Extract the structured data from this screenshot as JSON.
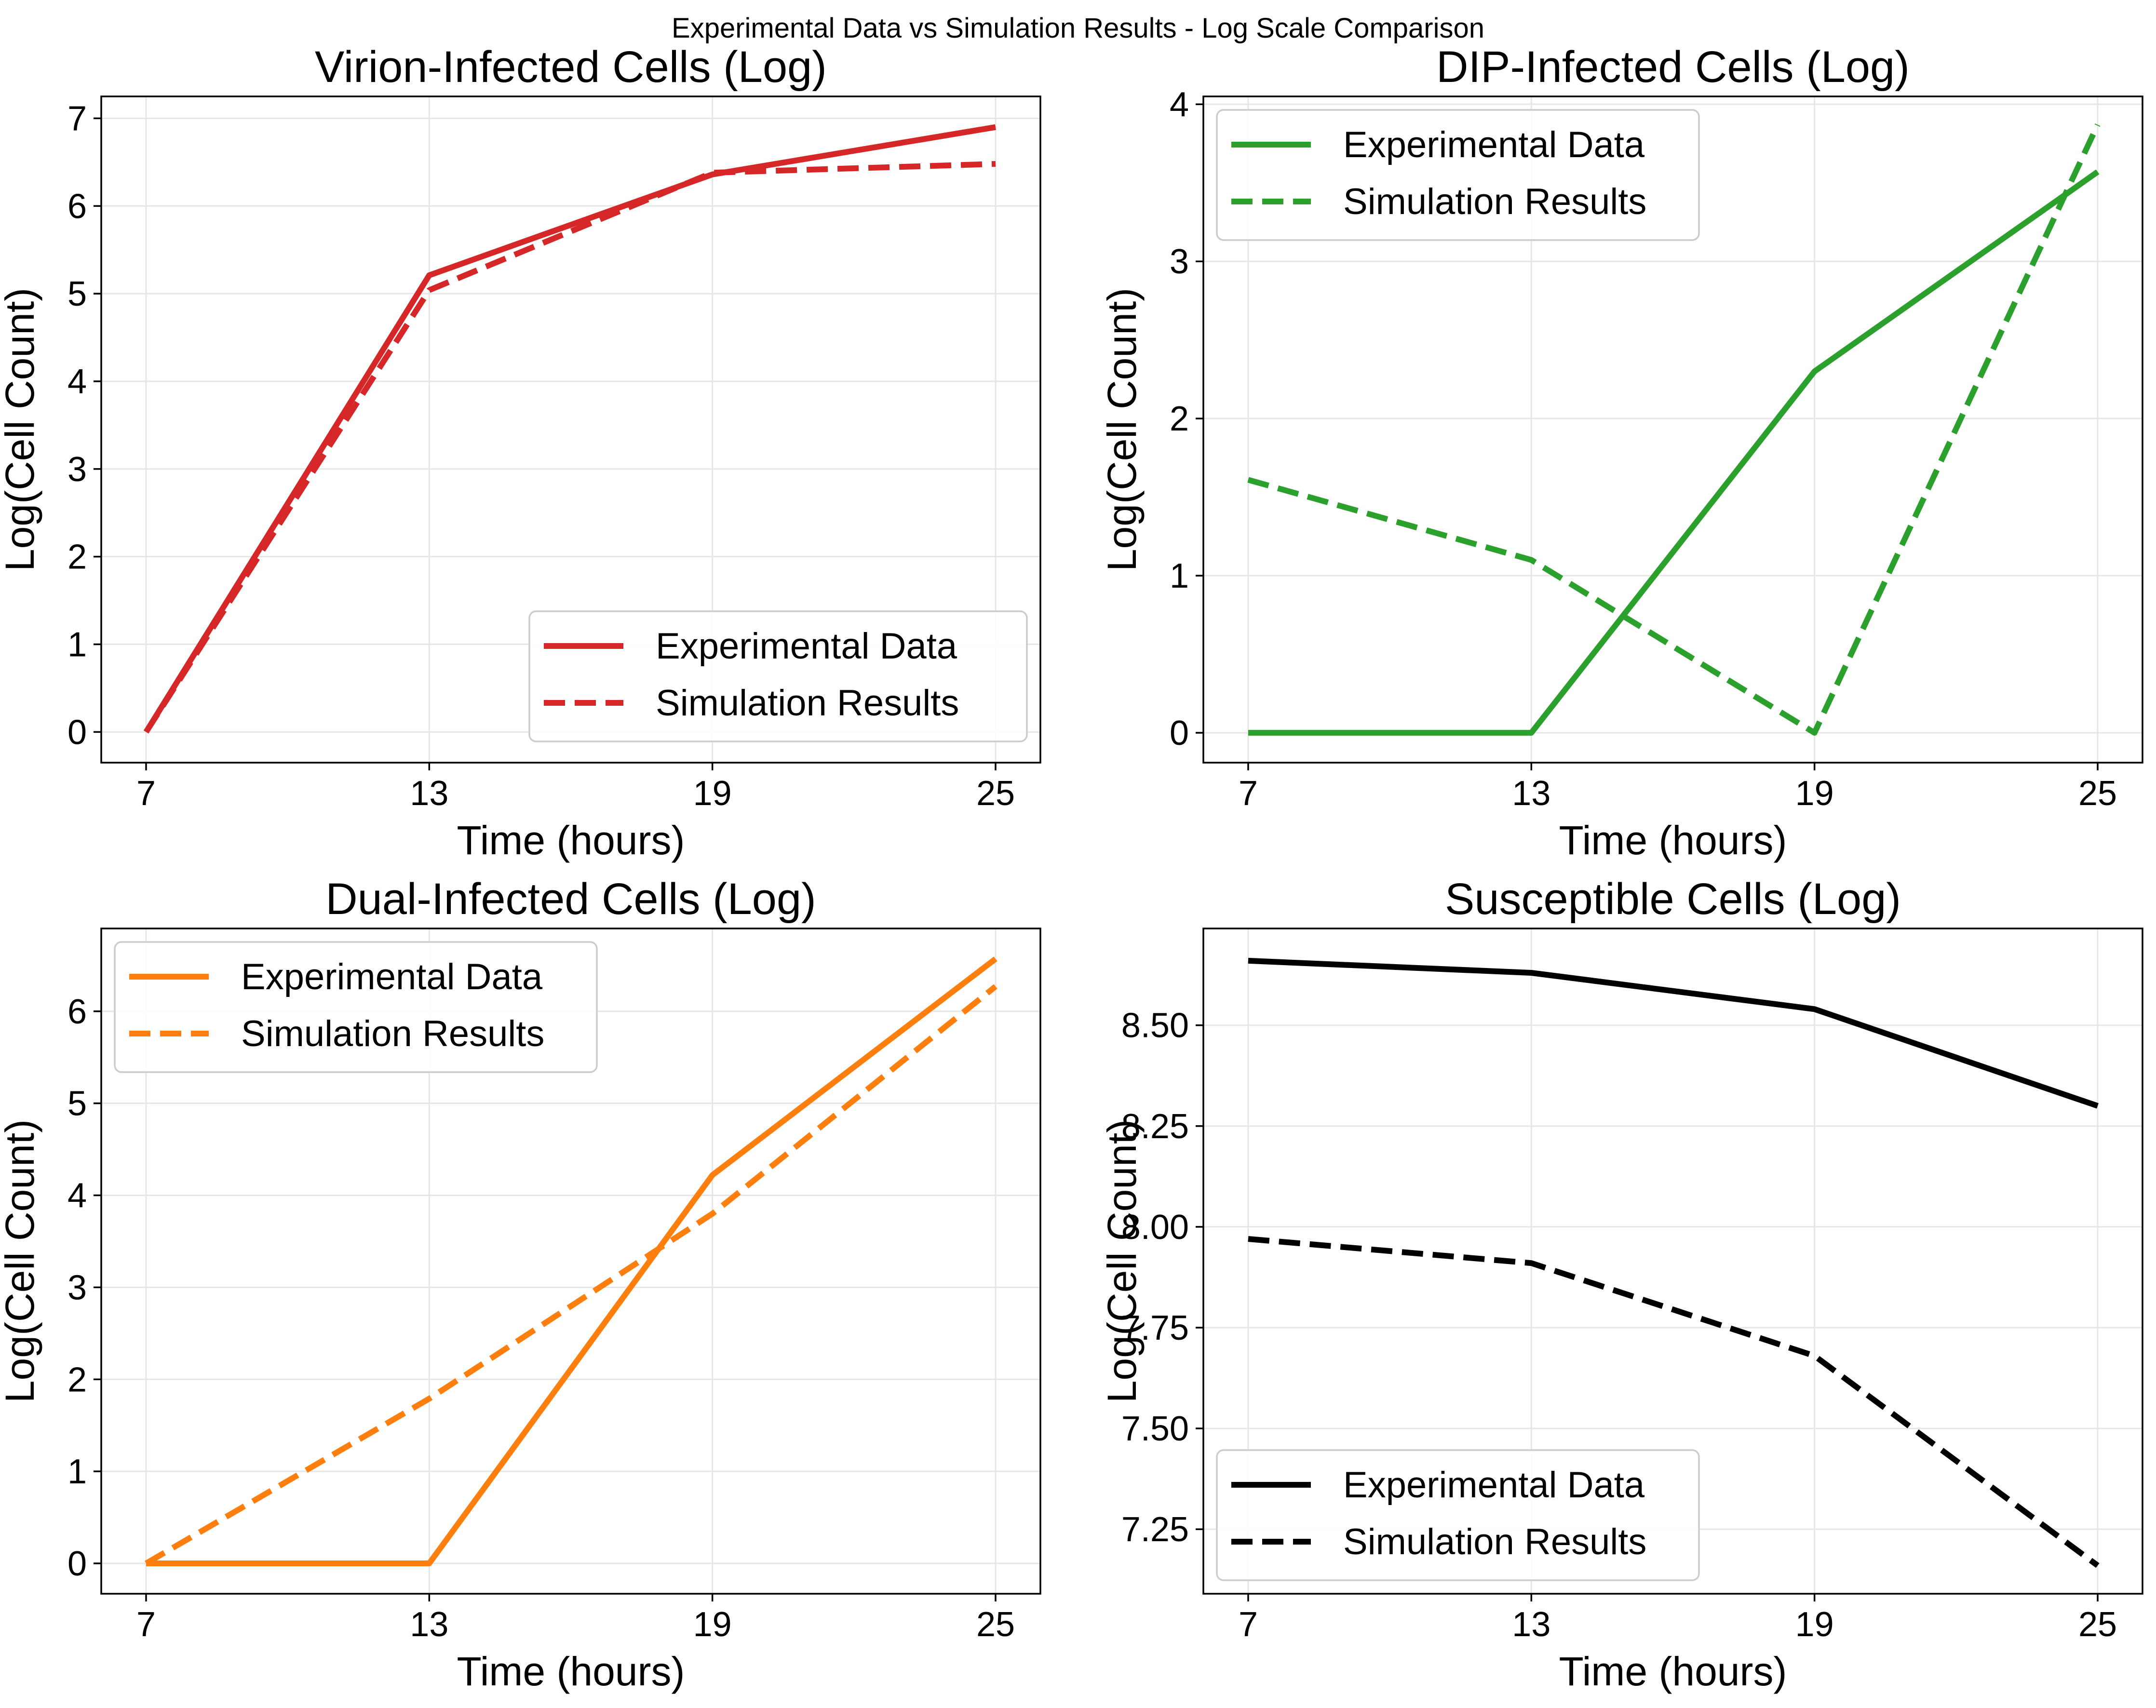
{
  "figure": {
    "suptitle": "Experimental Data vs Simulation Results - Log Scale Comparison"
  },
  "chart_data": [
    {
      "type": "line",
      "title": "Virion-Infected Cells (Log)",
      "xlabel": "Time (hours)",
      "ylabel": "Log(Cell Count)",
      "x": [
        7,
        13,
        19,
        25
      ],
      "xticks": [
        "7",
        "13",
        "19",
        "25"
      ],
      "xlim": [
        6.05,
        25.95
      ],
      "ylim": [
        -0.35,
        7.25
      ],
      "yticks": [
        "0",
        "1",
        "2",
        "3",
        "4",
        "5",
        "6",
        "7"
      ],
      "ytick_values": [
        0,
        1,
        2,
        3,
        4,
        5,
        6,
        7
      ],
      "grid": true,
      "legend_position": "lower-right",
      "color": "#d62728",
      "series": [
        {
          "name": "Experimental Data",
          "style": "solid",
          "values": [
            0.0,
            5.21,
            6.36,
            6.9
          ]
        },
        {
          "name": "Simulation Results",
          "style": "dashed",
          "values": [
            0.0,
            5.04,
            6.38,
            6.48
          ]
        }
      ]
    },
    {
      "type": "line",
      "title": "DIP-Infected Cells (Log)",
      "xlabel": "Time (hours)",
      "ylabel": "Log(Cell Count)",
      "x": [
        7,
        13,
        19,
        25
      ],
      "xticks": [
        "7",
        "13",
        "19",
        "25"
      ],
      "xlim": [
        6.05,
        25.95
      ],
      "ylim": [
        -0.19,
        4.05
      ],
      "yticks": [
        "0",
        "1",
        "2",
        "3",
        "4"
      ],
      "ytick_values": [
        0,
        1,
        2,
        3,
        4
      ],
      "grid": true,
      "legend_position": "upper-left",
      "color": "#2ca02c",
      "series": [
        {
          "name": "Experimental Data",
          "style": "solid",
          "values": [
            0.0,
            0.0,
            2.3,
            3.57
          ]
        },
        {
          "name": "Simulation Results",
          "style": "dashed",
          "values": [
            1.61,
            1.1,
            0.0,
            3.87
          ]
        }
      ]
    },
    {
      "type": "line",
      "title": "Dual-Infected Cells (Log)",
      "xlabel": "Time (hours)",
      "ylabel": "Log(Cell Count)",
      "x": [
        7,
        13,
        19,
        25
      ],
      "xticks": [
        "7",
        "13",
        "19",
        "25"
      ],
      "xlim": [
        6.05,
        25.95
      ],
      "ylim": [
        -0.33,
        6.9
      ],
      "yticks": [
        "0",
        "1",
        "2",
        "3",
        "4",
        "5",
        "6"
      ],
      "ytick_values": [
        0,
        1,
        2,
        3,
        4,
        5,
        6
      ],
      "grid": true,
      "legend_position": "upper-left",
      "color": "#ff7f0e",
      "series": [
        {
          "name": "Experimental Data",
          "style": "solid",
          "values": [
            0.0,
            0.0,
            4.22,
            6.57
          ]
        },
        {
          "name": "Simulation Results",
          "style": "dashed",
          "values": [
            0.0,
            1.79,
            3.8,
            6.27
          ]
        }
      ]
    },
    {
      "type": "line",
      "title": "Susceptible Cells (Log)",
      "xlabel": "Time (hours)",
      "ylabel": "Log(Cell Count)",
      "x": [
        7,
        13,
        19,
        25
      ],
      "xticks": [
        "7",
        "13",
        "19",
        "25"
      ],
      "xlim": [
        6.05,
        25.95
      ],
      "ylim": [
        7.09,
        8.74
      ],
      "yticks": [
        "7.25",
        "7.50",
        "7.75",
        "8.00",
        "8.25",
        "8.50"
      ],
      "ytick_values": [
        7.25,
        7.5,
        7.75,
        8.0,
        8.25,
        8.5
      ],
      "grid": true,
      "legend_position": "lower-left",
      "color": "#000000",
      "series": [
        {
          "name": "Experimental Data",
          "style": "solid",
          "values": [
            8.66,
            8.63,
            8.54,
            8.3
          ]
        },
        {
          "name": "Simulation Results",
          "style": "dashed",
          "values": [
            7.97,
            7.91,
            7.68,
            7.16
          ]
        }
      ]
    }
  ]
}
